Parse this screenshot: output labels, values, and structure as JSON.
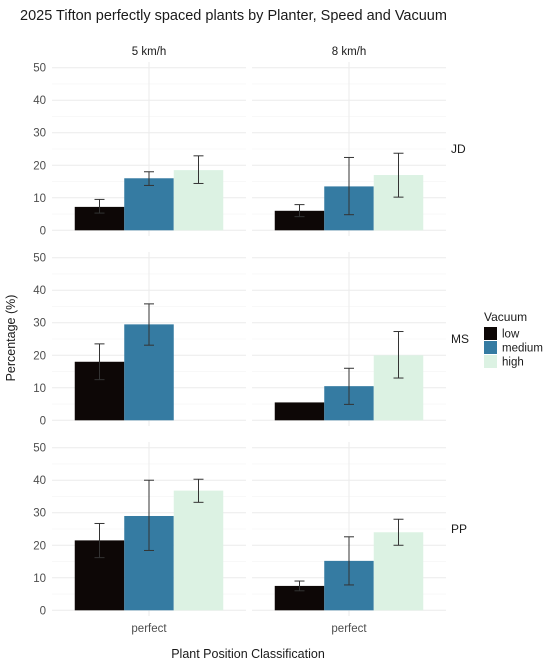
{
  "chart_data": {
    "type": "bar",
    "title": "2025 Tifton perfectly spaced plants by Planter, Speed and Vacuum",
    "xlabel": "Plant Position Classification",
    "ylabel": "Percentage (%)",
    "categories": [
      "perfect"
    ],
    "ylim": [
      0,
      50
    ],
    "yticks": [
      0,
      10,
      20,
      30,
      40,
      50
    ],
    "grid": true,
    "legend_position": "right",
    "columns": [
      "5 km/h",
      "8 km/h"
    ],
    "rows": [
      "JD",
      "MS",
      "PP"
    ],
    "legend": {
      "title": "Vacuum",
      "items": [
        {
          "label": "low",
          "color": "#0d0706"
        },
        {
          "label": "medium",
          "color": "#357ba2"
        },
        {
          "label": "high",
          "color": "#dcf2e3"
        }
      ]
    },
    "panels": [
      {
        "row": "JD",
        "column": "5 km/h",
        "bars": [
          {
            "vacuum": "low",
            "value": 7.2,
            "err_low": 5.3,
            "err_high": 9.5
          },
          {
            "vacuum": "medium",
            "value": 16.0,
            "err_low": 13.8,
            "err_high": 18.0
          },
          {
            "vacuum": "high",
            "value": 18.5,
            "err_low": 14.4,
            "err_high": 22.9
          }
        ]
      },
      {
        "row": "JD",
        "column": "8 km/h",
        "bars": [
          {
            "vacuum": "low",
            "value": 6.0,
            "err_low": 4.2,
            "err_high": 7.9
          },
          {
            "vacuum": "medium",
            "value": 13.5,
            "err_low": 4.8,
            "err_high": 22.4
          },
          {
            "vacuum": "high",
            "value": 17.0,
            "err_low": 10.2,
            "err_high": 23.7
          }
        ]
      },
      {
        "row": "MS",
        "column": "5 km/h",
        "bars": [
          {
            "vacuum": "low",
            "value": 18.0,
            "err_low": 12.5,
            "err_high": 23.5
          },
          {
            "vacuum": "medium",
            "value": 29.5,
            "err_low": 23.1,
            "err_high": 35.8
          },
          {
            "vacuum": "high",
            "value": null
          }
        ]
      },
      {
        "row": "MS",
        "column": "8 km/h",
        "bars": [
          {
            "vacuum": "low",
            "value": 5.5
          },
          {
            "vacuum": "medium",
            "value": 10.5,
            "err_low": 4.9,
            "err_high": 16.0
          },
          {
            "vacuum": "high",
            "value": 20.0,
            "err_low": 13.0,
            "err_high": 27.3
          }
        ]
      },
      {
        "row": "PP",
        "column": "5 km/h",
        "bars": [
          {
            "vacuum": "low",
            "value": 21.5,
            "err_low": 16.2,
            "err_high": 26.7
          },
          {
            "vacuum": "medium",
            "value": 29.0,
            "err_low": 18.4,
            "err_high": 40.0
          },
          {
            "vacuum": "high",
            "value": 36.8,
            "err_low": 33.2,
            "err_high": 40.3
          }
        ]
      },
      {
        "row": "PP",
        "column": "8 km/h",
        "bars": [
          {
            "vacuum": "low",
            "value": 7.5,
            "err_low": 6.0,
            "err_high": 9.0
          },
          {
            "vacuum": "medium",
            "value": 15.2,
            "err_low": 7.8,
            "err_high": 22.6
          },
          {
            "vacuum": "high",
            "value": 24.0,
            "err_low": 20.0,
            "err_high": 28.0
          }
        ]
      }
    ]
  }
}
